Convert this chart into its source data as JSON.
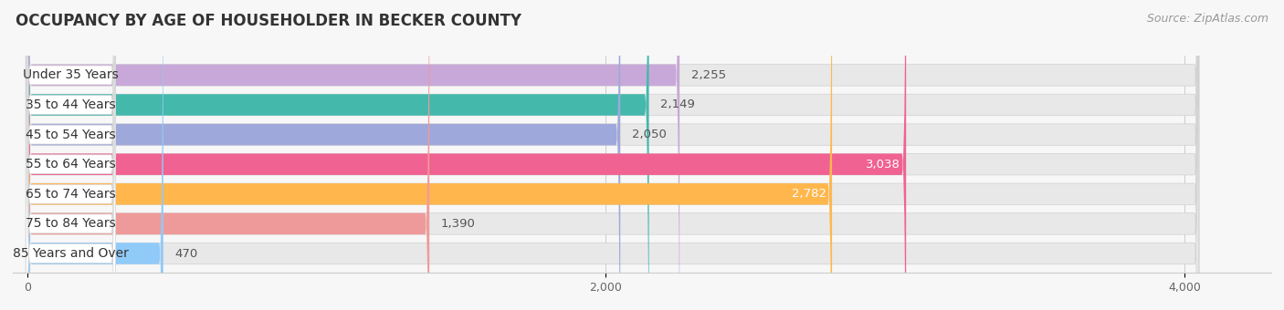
{
  "title": "OCCUPANCY BY AGE OF HOUSEHOLDER IN BECKER COUNTY",
  "source": "Source: ZipAtlas.com",
  "categories": [
    "Under 35 Years",
    "35 to 44 Years",
    "45 to 54 Years",
    "55 to 64 Years",
    "65 to 74 Years",
    "75 to 84 Years",
    "85 Years and Over"
  ],
  "values": [
    2255,
    2149,
    2050,
    3038,
    2782,
    1390,
    470
  ],
  "bar_colors": [
    "#c8a8d8",
    "#45b8ac",
    "#9fa8da",
    "#f06292",
    "#ffb74d",
    "#ef9a9a",
    "#90caf9"
  ],
  "xlim": [
    -50,
    4300
  ],
  "xticks": [
    0,
    2000,
    4000
  ],
  "background_color": "#f7f7f7",
  "bar_bg_color": "#e8e8e8",
  "title_fontsize": 12,
  "source_fontsize": 9,
  "label_fontsize": 10,
  "value_fontsize": 9.5
}
